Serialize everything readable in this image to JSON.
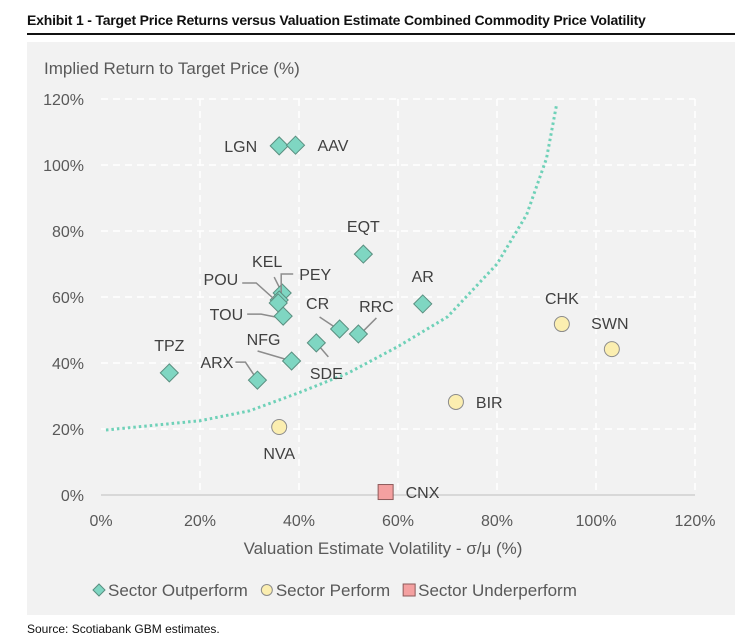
{
  "header": {
    "title": "Exhibit 1 - Target Price Returns versus Valuation Estimate Combined Commodity Price Volatility",
    "source": "Source: Scotiabank GBM estimates."
  },
  "chart_data": {
    "type": "scatter",
    "title": "Exhibit 1 - Target Price Returns versus Valuation Estimate Combined Commodity Price Volatility",
    "ylabel": "Implied Return to Target Price (%)",
    "xlabel": "Valuation Estimate Volatility - σ/μ (%)",
    "xlim": [
      0,
      120
    ],
    "ylim": [
      0,
      120
    ],
    "xticks": [
      "0%",
      "20%",
      "40%",
      "60%",
      "80%",
      "100%",
      "120%"
    ],
    "yticks": [
      "0%",
      "20%",
      "40%",
      "60%",
      "80%",
      "100%",
      "120%"
    ],
    "grid": true,
    "legend_position": "bottom",
    "series": [
      {
        "name": "Sector Outperform",
        "marker": "diamond",
        "color": "#7fd6c2",
        "points": [
          {
            "label": "LGN",
            "x": 36,
            "y": 105.8
          },
          {
            "label": "AAV",
            "x": 39.3,
            "y": 106
          },
          {
            "label": "EQT",
            "x": 53,
            "y": 73
          },
          {
            "label": "AR",
            "x": 65,
            "y": 57.9
          },
          {
            "label": "KEL",
            "x": 36.6,
            "y": 61.2
          },
          {
            "label": "PEY",
            "x": 36,
            "y": 59.1
          },
          {
            "label": "POU",
            "x": 35.8,
            "y": 58.2
          },
          {
            "label": "TOU",
            "x": 36.8,
            "y": 54.2
          },
          {
            "label": "CR",
            "x": 48.2,
            "y": 50.3
          },
          {
            "label": "RRC",
            "x": 52,
            "y": 48.8
          },
          {
            "label": "SDE",
            "x": 43.5,
            "y": 46.1
          },
          {
            "label": "NFG",
            "x": 38.5,
            "y": 40.6
          },
          {
            "label": "ARX",
            "x": 31.6,
            "y": 34.8
          },
          {
            "label": "TPZ",
            "x": 13.8,
            "y": 37
          }
        ]
      },
      {
        "name": "Sector Perform",
        "marker": "circle",
        "color": "#fbeeb0",
        "points": [
          {
            "label": "CHK",
            "x": 93.1,
            "y": 51.8
          },
          {
            "label": "SWN",
            "x": 103.2,
            "y": 44.2
          },
          {
            "label": "BIR",
            "x": 71.7,
            "y": 28.2
          },
          {
            "label": "NVA",
            "x": 36,
            "y": 20.6
          }
        ]
      },
      {
        "name": "Sector Underperform",
        "marker": "square",
        "color": "#f4a0a0",
        "points": [
          {
            "label": "CNX",
            "x": 57.5,
            "y": 0.9
          }
        ]
      }
    ],
    "trend_curve": {
      "style": "dotted",
      "color": "#6fd1b8",
      "points": [
        [
          1,
          19.7
        ],
        [
          20,
          22.5
        ],
        [
          30,
          25.5
        ],
        [
          40,
          31
        ],
        [
          50,
          37
        ],
        [
          60,
          45
        ],
        [
          70,
          54
        ],
        [
          80,
          70
        ],
        [
          86,
          85
        ],
        [
          90,
          102
        ],
        [
          92,
          118
        ]
      ]
    }
  }
}
